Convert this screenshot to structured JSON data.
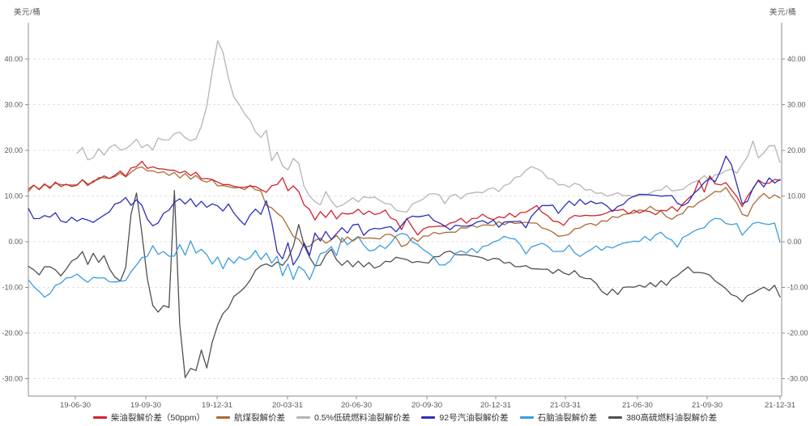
{
  "chart_data": {
    "type": "line",
    "unit_left": "美元/桶",
    "unit_right": "美元/桶",
    "grid": "horizontal-dashed",
    "legend_position": "bottom-center",
    "ylim": [
      -33.8,
      47.6
    ],
    "yticks": [
      {
        "v": 40,
        "label": "40.00"
      },
      {
        "v": 30,
        "label": "30.00"
      },
      {
        "v": 20,
        "label": "20.00"
      },
      {
        "v": 10,
        "label": "10.00"
      },
      {
        "v": 0,
        "label": "0.00"
      },
      {
        "v": -10,
        "label": "-10.00"
      },
      {
        "v": -20,
        "label": "-20.00"
      },
      {
        "v": -30,
        "label": "-30.00"
      }
    ],
    "xticks": [
      {
        "label": "19-06-30",
        "pos": 0.0625
      },
      {
        "label": "19-09-30",
        "pos": 0.1562
      },
      {
        "label": "19-12-31",
        "pos": 0.2511
      },
      {
        "label": "20-03-31",
        "pos": 0.3448
      },
      {
        "label": "20-06-30",
        "pos": 0.4364
      },
      {
        "label": "20-09-30",
        "pos": 0.5302
      },
      {
        "label": "20-12-31",
        "pos": 0.6218
      },
      {
        "label": "21-03-31",
        "pos": 0.7145
      },
      {
        "label": "21-06-30",
        "pos": 0.8103
      },
      {
        "label": "21-09-30",
        "pos": 0.903
      },
      {
        "label": "21-12-31",
        "pos": 1.0
      }
    ],
    "series": [
      {
        "name": "柴油裂解价差（50ppm）",
        "color": "#d0232e",
        "values": [
          11.5,
          12.3,
          11.8,
          12.5,
          12.1,
          13.0,
          12.4,
          12.8,
          12.2,
          12.8,
          13.5,
          12.8,
          13.2,
          14.0,
          14.5,
          13.8,
          14.8,
          15.2,
          14.6,
          15.8,
          16.5,
          17.4,
          15.8,
          16.4,
          15.5,
          16.0,
          15.2,
          15.6,
          14.8,
          15.2,
          14.5,
          14.8,
          14.0,
          13.5,
          13.8,
          13.0,
          12.5,
          12.8,
          12.0,
          12.4,
          11.8,
          12.6,
          12.2,
          11.6,
          11.2,
          12.2,
          13.0,
          13.9,
          11.5,
          12.2,
          11.0,
          8.2,
          6.8,
          5.0,
          6.2,
          5.4,
          6.6,
          4.8,
          6.2,
          5.6,
          6.3,
          6.6,
          6.0,
          6.4,
          5.8,
          6.2,
          6.6,
          5.4,
          4.4,
          2.9,
          5.0,
          3.3,
          1.7,
          2.7,
          3.7,
          3.2,
          3.9,
          3.4,
          4.3,
          4.7,
          5.1,
          4.5,
          4.9,
          5.5,
          5.9,
          5.3,
          4.9,
          5.2,
          5.4,
          5.8,
          5.5,
          6.0,
          6.3,
          7.0,
          7.5,
          6.5,
          5.2,
          4.6,
          4.0,
          3.5,
          5.0,
          5.5,
          5.8,
          5.5,
          6.0,
          5.6,
          6.1,
          6.5,
          6.9,
          7.3,
          7.0,
          6.6,
          6.9,
          6.6,
          7.0,
          6.6,
          6.3,
          6.7,
          7.1,
          7.5,
          6.8,
          8.2,
          9.2,
          10.5,
          13.0,
          11.0,
          14.0,
          12.6,
          12.2,
          12.6,
          11.4,
          9.4,
          7.8,
          9.6,
          11.6,
          13.4,
          12.6,
          13.0,
          13.4,
          13.8
        ]
      },
      {
        "name": "航煤裂解价差",
        "color": "#a96b32",
        "values": [
          11.2,
          12.0,
          11.5,
          12.2,
          11.8,
          12.7,
          12.1,
          12.5,
          11.9,
          12.5,
          13.2,
          12.5,
          12.9,
          13.7,
          14.2,
          13.5,
          14.5,
          14.9,
          14.3,
          15.4,
          16.0,
          16.8,
          15.4,
          16.0,
          15.1,
          15.6,
          14.8,
          15.2,
          14.4,
          14.8,
          14.1,
          14.4,
          13.6,
          13.1,
          13.4,
          12.4,
          11.9,
          12.2,
          11.4,
          11.8,
          11.2,
          12.0,
          11.4,
          10.6,
          8.0,
          7.0,
          6.2,
          5.2,
          3.0,
          1.3,
          0.2,
          -0.8,
          -1.2,
          0.5,
          0.9,
          -0.3,
          0.8,
          1.3,
          0.4,
          1.0,
          0.5,
          1.2,
          0.8,
          1.2,
          0.6,
          1.0,
          1.4,
          1.8,
          0.8,
          -1.2,
          -0.5,
          0.5,
          0.2,
          0.8,
          1.2,
          1.8,
          1.4,
          2.0,
          1.6,
          2.2,
          2.6,
          3.0,
          3.4,
          3.0,
          3.8,
          3.4,
          3.9,
          4.2,
          4.0,
          4.4,
          4.1,
          4.5,
          4.2,
          4.6,
          4.0,
          3.4,
          2.8,
          2.2,
          1.5,
          1.2,
          2.0,
          2.6,
          3.2,
          3.6,
          3.9,
          3.6,
          4.2,
          4.6,
          5.0,
          5.3,
          5.6,
          5.9,
          6.2,
          6.5,
          6.9,
          7.3,
          7.0,
          6.5,
          5.4,
          5.0,
          5.6,
          6.5,
          7.5,
          8.0,
          8.7,
          9.5,
          10.5,
          11.0,
          11.4,
          11.8,
          10.5,
          8.5,
          6.2,
          5.8,
          8.0,
          9.8,
          10.3,
          9.7,
          10.0,
          9.5
        ]
      },
      {
        "name": "0.5%低硫燃料油裂解价差",
        "color": "#b5b5b5",
        "values": [
          null,
          null,
          null,
          null,
          null,
          null,
          null,
          null,
          null,
          19.5,
          21.0,
          17.8,
          18.8,
          20.2,
          19.2,
          20.6,
          21.2,
          20.2,
          20.0,
          21.4,
          22.0,
          20.6,
          21.0,
          19.8,
          22.6,
          21.8,
          22.4,
          23.2,
          24.0,
          22.5,
          22.0,
          22.6,
          25.0,
          30.0,
          37.0,
          44.3,
          41.5,
          36.0,
          32.0,
          30.0,
          28.5,
          26.5,
          24.5,
          22.9,
          24.6,
          18.0,
          19.5,
          17.0,
          15.5,
          18.5,
          17.0,
          12.0,
          10.0,
          8.4,
          8.2,
          10.5,
          9.0,
          7.2,
          7.8,
          8.6,
          9.2,
          8.8,
          9.4,
          9.7,
          9.5,
          9.0,
          8.4,
          8.0,
          7.2,
          6.4,
          6.9,
          8.2,
          9.0,
          9.6,
          10.4,
          11.0,
          10.2,
          8.8,
          10.0,
          10.6,
          9.6,
          10.4,
          11.0,
          10.6,
          11.0,
          11.3,
          11.8,
          10.9,
          12.0,
          12.8,
          13.6,
          14.4,
          15.2,
          16.3,
          15.8,
          15.0,
          14.0,
          13.2,
          12.6,
          12.2,
          12.0,
          12.8,
          12.3,
          11.6,
          11.2,
          11.0,
          10.6,
          10.3,
          10.5,
          10.8,
          10.5,
          10.1,
          10.3,
          10.1,
          10.4,
          10.8,
          11.2,
          11.6,
          12.0,
          11.4,
          11.0,
          11.5,
          12.2,
          12.8,
          13.4,
          14.0,
          13.5,
          14.2,
          14.8,
          15.3,
          15.6,
          15.0,
          16.5,
          18.8,
          21.7,
          18.5,
          19.4,
          21.0,
          21.3,
          17.2
        ]
      },
      {
        "name": "92号汽油裂解价差",
        "color": "#2c2fb8",
        "values": [
          7.0,
          5.2,
          4.6,
          5.8,
          5.0,
          6.2,
          4.4,
          3.8,
          5.4,
          4.0,
          5.2,
          4.4,
          4.2,
          5.0,
          5.6,
          6.8,
          8.0,
          9.0,
          9.6,
          8.2,
          9.4,
          8.0,
          5.4,
          3.4,
          4.6,
          6.2,
          7.2,
          8.8,
          9.4,
          8.6,
          9.2,
          8.0,
          8.6,
          7.6,
          8.2,
          7.6,
          6.8,
          7.8,
          6.4,
          4.4,
          3.6,
          5.6,
          6.8,
          6.0,
          8.5,
          4.5,
          -2.5,
          -3.7,
          -0.3,
          -5.2,
          -3.0,
          -0.5,
          -2.6,
          1.8,
          0.5,
          2.4,
          0.6,
          2.2,
          3.0,
          2.4,
          3.6,
          4.2,
          1.5,
          2.6,
          3.2,
          2.6,
          3.4,
          3.0,
          2.3,
          3.4,
          4.8,
          5.6,
          5.0,
          5.7,
          5.4,
          4.6,
          3.8,
          3.2,
          2.6,
          3.2,
          3.6,
          3.0,
          3.8,
          4.2,
          4.6,
          4.2,
          4.6,
          3.6,
          4.2,
          4.8,
          4.5,
          4.7,
          3.4,
          5.5,
          7.3,
          7.8,
          8.3,
          8.0,
          6.3,
          7.8,
          8.7,
          8.2,
          8.9,
          8.3,
          8.6,
          8.2,
          8.5,
          7.4,
          6.7,
          7.2,
          8.2,
          9.0,
          9.8,
          10.3,
          10.0,
          10.4,
          9.8,
          10.2,
          9.9,
          10.2,
          8.6,
          7.8,
          9.0,
          10.4,
          12.0,
          13.0,
          14.2,
          13.4,
          15.6,
          19.2,
          16.8,
          13.0,
          8.2,
          9.0,
          11.8,
          13.2,
          12.2,
          13.6,
          13.0,
          13.3
        ]
      },
      {
        "name": "石脑油裂解价差",
        "color": "#3b9ce0",
        "values": [
          -8.5,
          -9.5,
          -10.8,
          -12.0,
          -11.0,
          -9.6,
          -8.6,
          -8.0,
          -7.4,
          -7.0,
          -8.0,
          -8.6,
          -8.0,
          -7.6,
          -8.2,
          -8.6,
          -9.0,
          -8.8,
          -8.5,
          -7.0,
          -5.0,
          -4.0,
          -3.2,
          -1.2,
          -3.0,
          -2.2,
          -3.6,
          -3.0,
          -1.0,
          -2.8,
          0.0,
          -2.5,
          -1.5,
          -3.0,
          -4.5,
          -3.5,
          -5.5,
          -3.5,
          -4.5,
          -3.0,
          -4.0,
          -3.0,
          -2.0,
          -3.5,
          -2.5,
          -4.5,
          -3.0,
          -7.6,
          -4.6,
          -8.6,
          -5.2,
          -6.6,
          -8.4,
          -5.6,
          -3.0,
          -2.2,
          -1.6,
          -3.0,
          0.5,
          -0.8,
          0.2,
          0.8,
          -0.6,
          -2.4,
          -1.6,
          -1.0,
          -1.4,
          -0.2,
          1.2,
          2.2,
          1.4,
          0.4,
          -0.6,
          -1.4,
          -2.2,
          -3.4,
          -4.6,
          -5.2,
          -3.8,
          -2.6,
          -1.8,
          -2.4,
          -1.6,
          -2.2,
          -1.4,
          -0.6,
          -0.4,
          0.3,
          1.0,
          0.4,
          0.6,
          -1.2,
          -2.6,
          -1.6,
          -0.8,
          -0.5,
          -1.2,
          -2.0,
          -2.5,
          -1.8,
          -1.0,
          -2.2,
          -3.2,
          -2.4,
          -1.4,
          -1.0,
          -1.4,
          -1.1,
          -1.0,
          -0.6,
          -0.2,
          0.3,
          0.0,
          0.5,
          1.0,
          0.5,
          1.5,
          2.0,
          1.0,
          0.0,
          -1.0,
          0.5,
          1.5,
          2.0,
          2.5,
          3.0,
          4.0,
          5.2,
          4.5,
          4.0,
          3.5,
          3.8,
          1.5,
          2.5,
          4.3,
          4.0,
          4.2,
          3.8,
          4.2,
          0.2
        ]
      },
      {
        "name": "380高硫燃料油裂解价差",
        "color": "#4f4f4f",
        "values": [
          -5.5,
          -6.5,
          -7.2,
          -6.0,
          -5.4,
          -6.6,
          -7.6,
          -6.2,
          -4.6,
          -3.5,
          -2.6,
          -4.8,
          -2.8,
          -4.4,
          -3.0,
          -6.0,
          -7.4,
          -8.8,
          -5.2,
          6.0,
          11.0,
          2.0,
          -8.0,
          -13.5,
          -15.5,
          -13.5,
          -14.5,
          11.5,
          -18.0,
          -29.8,
          -27.5,
          -28.5,
          -23.5,
          -28.0,
          -22.0,
          -18.5,
          -16.0,
          -14.5,
          -12.5,
          -11.0,
          -10.5,
          -8.5,
          -6.5,
          -5.5,
          -4.8,
          -5.8,
          -4.2,
          -5.5,
          -3.5,
          -1.0,
          3.8,
          -0.5,
          -3.5,
          -4.8,
          -5.2,
          -2.5,
          -1.5,
          -3.8,
          -4.8,
          -4.2,
          -5.0,
          -4.4,
          -5.2,
          -4.6,
          -5.8,
          -5.2,
          -4.6,
          -4.2,
          -3.8,
          -3.6,
          -4.2,
          -4.8,
          -4.4,
          -5.0,
          -4.6,
          -3.8,
          -3.2,
          -2.6,
          -2.2,
          -2.8,
          -3.2,
          -2.6,
          -3.4,
          -3.0,
          -3.6,
          -4.0,
          -3.4,
          -3.8,
          -4.2,
          -4.6,
          -5.0,
          -5.4,
          -5.0,
          -5.6,
          -6.0,
          -5.6,
          -6.2,
          -6.6,
          -6.2,
          -6.8,
          -7.2,
          -6.6,
          -7.5,
          -8.5,
          -8.0,
          -9.5,
          -11.0,
          -11.8,
          -10.8,
          -11.5,
          -10.5,
          -9.8,
          -10.3,
          -9.6,
          -10.0,
          -9.2,
          -9.6,
          -8.8,
          -9.2,
          -8.2,
          -7.2,
          -6.2,
          -5.5,
          -6.3,
          -6.8,
          -6.4,
          -7.3,
          -8.3,
          -9.2,
          -10.3,
          -11.2,
          -12.2,
          -12.8,
          -12.0,
          -11.2,
          -10.6,
          -10.2,
          -10.6,
          -10.0,
          -12.0
        ]
      }
    ]
  }
}
